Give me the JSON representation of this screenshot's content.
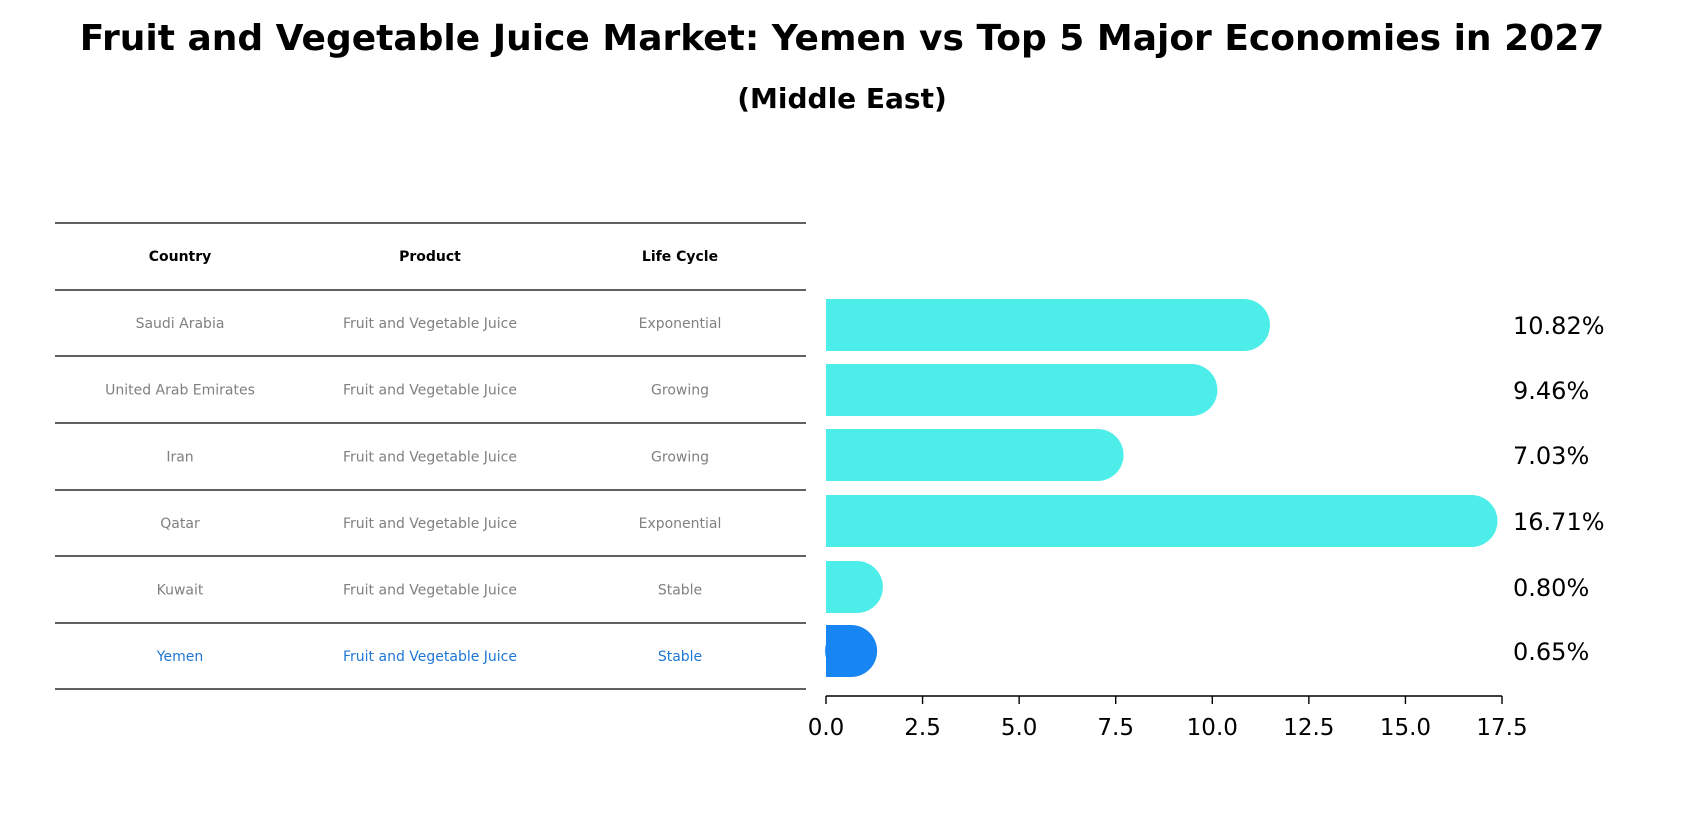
{
  "chart_data": {
    "type": "bar",
    "orientation": "horizontal",
    "title": "Fruit and Vegetable Juice Market: Yemen vs Top 5 Major Economies in 2027",
    "subtitle": "(Middle East)",
    "table": {
      "headers": [
        "Country",
        "Product",
        "Life Cycle"
      ],
      "rows": [
        [
          "Saudi Arabia",
          "Fruit and Vegetable Juice",
          "Exponential"
        ],
        [
          "United Arab Emirates",
          "Fruit and Vegetable Juice",
          "Growing"
        ],
        [
          "Iran",
          "Fruit and Vegetable Juice",
          "Growing"
        ],
        [
          "Qatar",
          "Fruit and Vegetable Juice",
          "Exponential"
        ],
        [
          "Kuwait",
          "Fruit and Vegetable Juice",
          "Stable"
        ],
        [
          "Yemen",
          "Fruit and Vegetable Juice",
          "Stable"
        ]
      ],
      "highlight_row": 5
    },
    "categories": [
      "Saudi Arabia",
      "United Arab Emirates",
      "Iran",
      "Qatar",
      "Kuwait",
      "Yemen"
    ],
    "values": [
      10.82,
      9.46,
      7.03,
      16.71,
      0.8,
      0.65
    ],
    "value_labels": [
      "10.82%",
      "9.46%",
      "7.03%",
      "16.71%",
      "0.80%",
      "0.65%"
    ],
    "xlim": [
      0,
      17.5
    ],
    "xticks": [
      "0.0",
      "2.5",
      "5.0",
      "7.5",
      "10.0",
      "12.5",
      "15.0",
      "17.5"
    ],
    "xtick_values": [
      0,
      2.5,
      5,
      7.5,
      10,
      12.5,
      15,
      17.5
    ],
    "grid": false,
    "colors": {
      "bar": "#4deeea",
      "highlight_bar": "#1785f2",
      "table_text": "#808080",
      "highlight_text": "#1f77d4"
    }
  }
}
